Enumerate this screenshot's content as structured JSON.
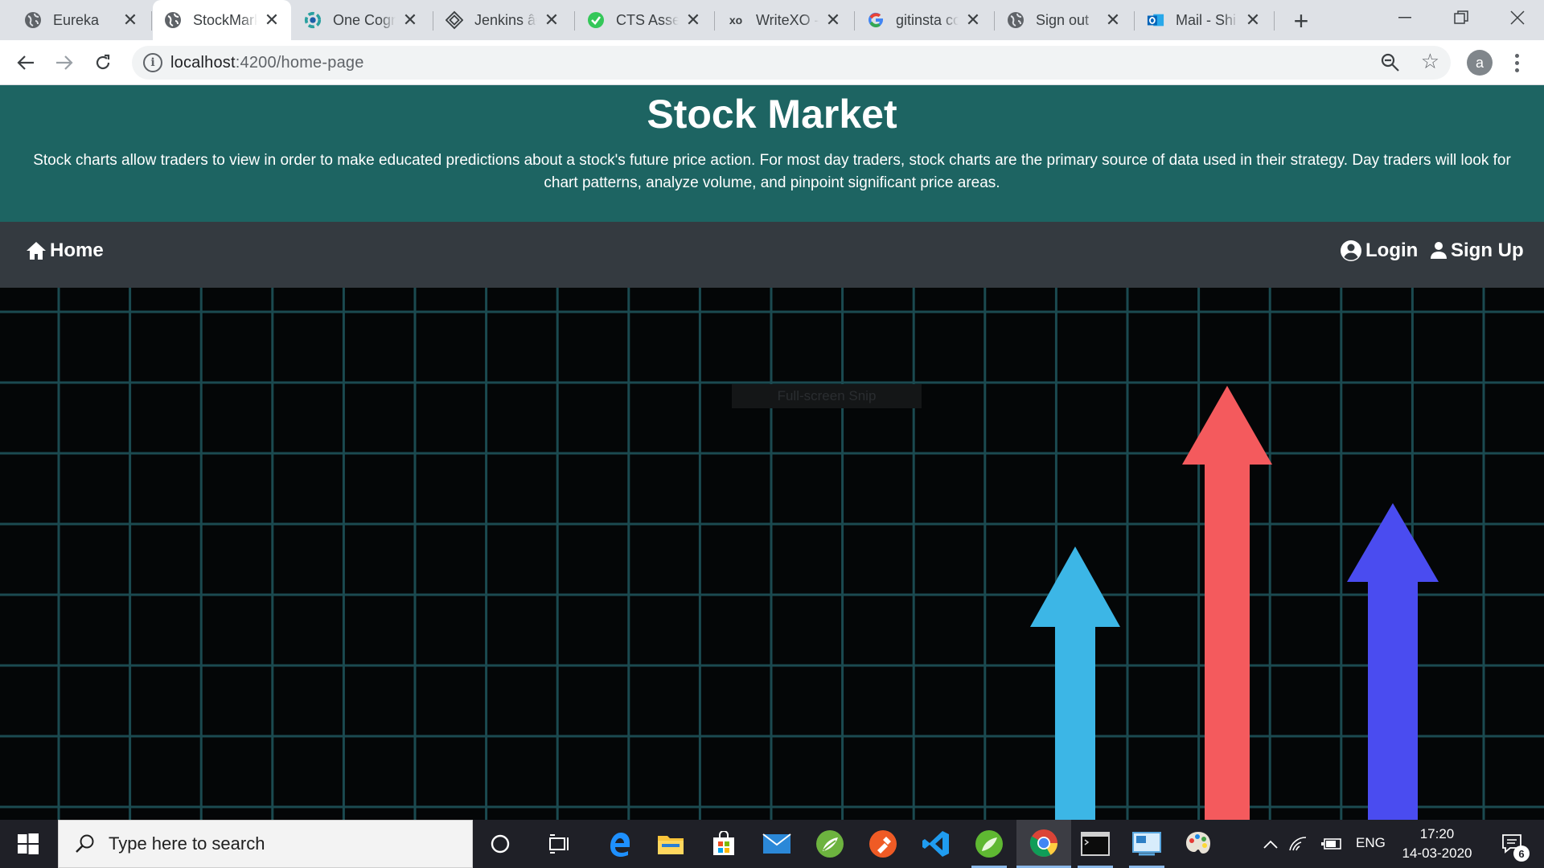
{
  "browser": {
    "tabs": [
      {
        "title": "Eureka",
        "icon": "globe-icon",
        "active": false
      },
      {
        "title": "StockMarket",
        "icon": "globe-icon",
        "active": true
      },
      {
        "title": "One Cognizant",
        "icon": "one-cognizant-icon",
        "active": false
      },
      {
        "title": "Jenkins â€¦",
        "icon": "jenkins-icon",
        "active": false
      },
      {
        "title": "CTS Assessment",
        "icon": "check-circle-icon",
        "active": false
      },
      {
        "title": "WriteXO - ",
        "icon": "xo-icon",
        "active": false
      },
      {
        "title": "gitinsta co",
        "icon": "google-icon",
        "active": false
      },
      {
        "title": "Sign out",
        "icon": "globe-icon",
        "active": false
      },
      {
        "title": "Mail - Shi",
        "icon": "outlook-icon",
        "active": false
      }
    ],
    "url_host": "localhost",
    "url_path": ":4200/home-page",
    "profile_initial": "a"
  },
  "page": {
    "title": "Stock Market",
    "description": "Stock charts allow traders to view in order to make educated predictions about a stock's future price action. For most day traders, stock charts are the primary source of data used in their strategy. Day traders will look for chart patterns, analyze volume, and pinpoint significant price areas.",
    "nav": {
      "home_label": "Home",
      "login_label": "Login",
      "signup_label": "Sign Up"
    },
    "hero": {
      "overlay_text": "Full-screen Snip",
      "arrow_colors": [
        "#3cb6e6",
        "#f45a5d",
        "#4a4cf0"
      ],
      "grid_color": "#1b4a50"
    }
  },
  "taskbar": {
    "search_placeholder": "Type here to search",
    "language": "ENG",
    "time": "17:20",
    "date": "14-03-2020",
    "notification_count": "6"
  }
}
